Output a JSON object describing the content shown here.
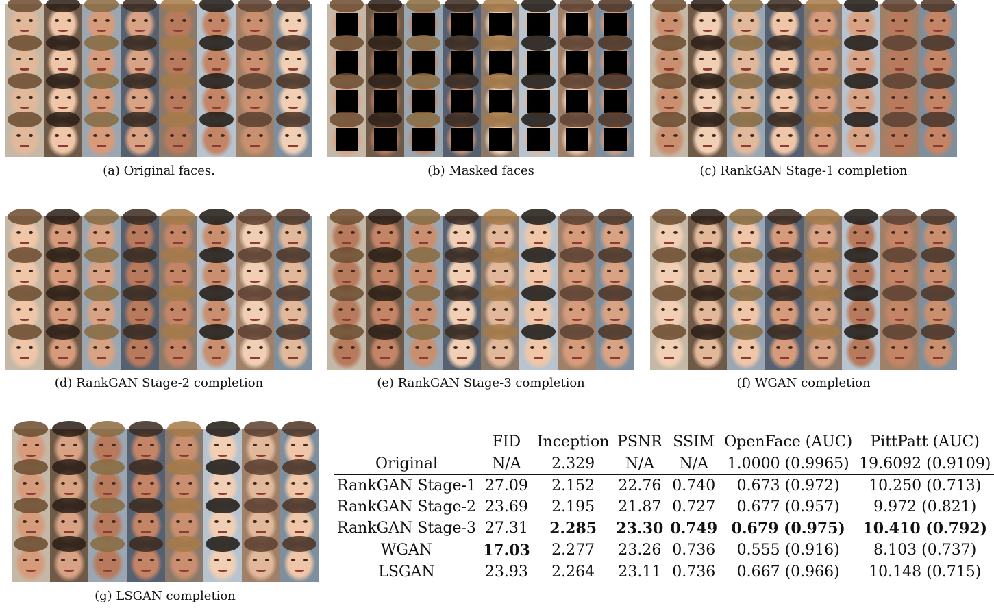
{
  "panels": [
    {
      "id": "a",
      "caption": "(a) Original faces.",
      "masked": false
    },
    {
      "id": "b",
      "caption": "(b) Masked faces",
      "masked": true
    },
    {
      "id": "c",
      "caption": "(c) RankGAN Stage-1 completion",
      "masked": false
    },
    {
      "id": "d",
      "caption": "(d) RankGAN Stage-2 completion",
      "masked": false
    },
    {
      "id": "e",
      "caption": "(e) RankGAN Stage-3 completion",
      "masked": false
    },
    {
      "id": "f",
      "caption": "(f) WGAN completion",
      "masked": false
    },
    {
      "id": "g",
      "caption": "(g) LSGAN completion",
      "masked": false
    }
  ],
  "table": {
    "headers": [
      "",
      "FID",
      "Inception",
      "PSNR",
      "SSIM",
      "OpenFace (AUC)",
      "PittPatt (AUC)"
    ],
    "rows": [
      {
        "cells": [
          "Original",
          "N/A",
          "2.329",
          "N/A",
          "N/A",
          "1.0000 (0.9965)",
          "19.6092 (0.9109)"
        ],
        "bold": []
      },
      {
        "cells": [
          "RankGAN Stage-1",
          "27.09",
          "2.152",
          "22.76",
          "0.740",
          "0.673 (0.972)",
          "10.250 (0.713)"
        ],
        "bold": []
      },
      {
        "cells": [
          "RankGAN Stage-2",
          "23.69",
          "2.195",
          "21.87",
          "0.727",
          "0.677 (0.957)",
          "9.972 (0.821)"
        ],
        "bold": []
      },
      {
        "cells": [
          "RankGAN Stage-3",
          "27.31",
          "2.285",
          "23.30",
          "0.749",
          "0.679 (0.975)",
          "10.410 (0.792)"
        ],
        "bold": [
          2,
          3,
          4,
          5,
          6
        ]
      },
      {
        "cells": [
          "WGAN",
          "17.03",
          "2.277",
          "23.26",
          "0.736",
          "0.555 (0.916)",
          "8.103 (0.737)"
        ],
        "bold": [
          1
        ]
      },
      {
        "cells": [
          "LSGAN",
          "23.93",
          "2.264",
          "23.11",
          "0.736",
          "0.667 (0.966)",
          "10.148 (0.715)"
        ],
        "bold": []
      }
    ]
  }
}
